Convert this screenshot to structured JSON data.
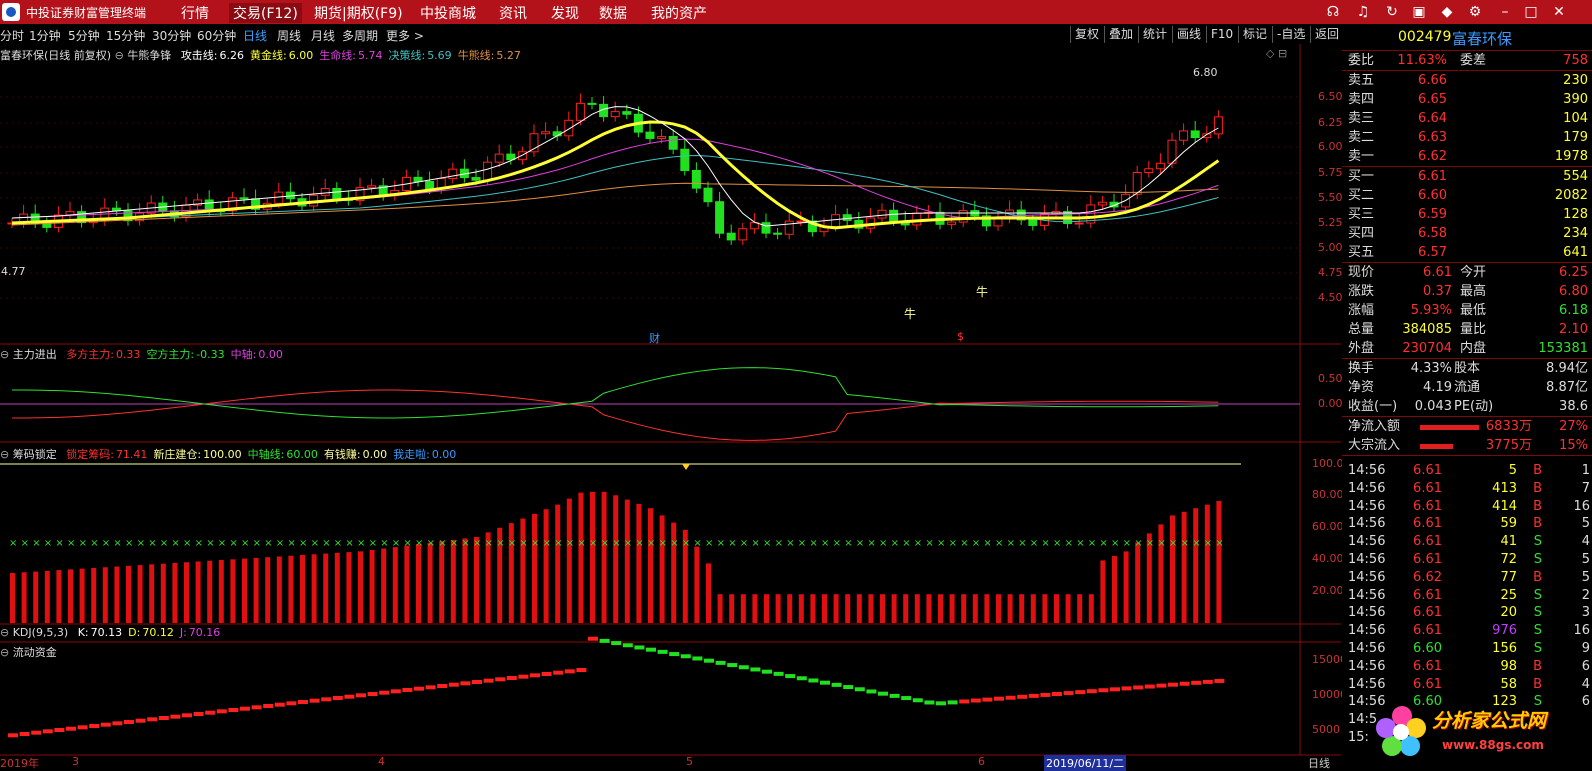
{
  "app": {
    "title": "中投证券财富管理终端"
  },
  "menu": [
    "行情",
    "交易(F12)",
    "期货|期权(F9)",
    "中投商城",
    "资讯",
    "发现",
    "数据",
    "我的资产"
  ],
  "periods": [
    "分时",
    "1分钟",
    "5分钟",
    "15分钟",
    "30分钟",
    "60分钟",
    "日线",
    "周线",
    "月线",
    "多周期",
    "更多 >"
  ],
  "toolbar_right": [
    "复权",
    "叠加",
    "统计",
    "画线",
    "F10",
    "标记",
    "-自选",
    "返回"
  ],
  "stock": {
    "code": "002479",
    "name": "富春环保"
  },
  "main_legend": {
    "title": "富春环保(日线 前复权)",
    "indicator": "牛熊争锋",
    "items": [
      {
        "label": "攻击线:",
        "value": "6.26",
        "color": "#ffffff"
      },
      {
        "label": "黄金线:",
        "value": "6.00",
        "color": "#ffff33"
      },
      {
        "label": "生命线:",
        "value": "5.74",
        "color": "#e040e0"
      },
      {
        "label": "决策线:",
        "value": "5.69",
        "color": "#40c0c0"
      },
      {
        "label": "牛熊线:",
        "value": "5.27",
        "color": "#e09040"
      }
    ]
  },
  "main_axis": [
    "6.50",
    "6.25",
    "6.00",
    "5.75",
    "5.50",
    "5.25",
    "5.00",
    "4.75",
    "4.50"
  ],
  "main_marks": {
    "high": "6.80",
    "low": "4.77",
    "bull1": "牛",
    "bull2": "牛",
    "cai": "财",
    "s_mark": "$"
  },
  "panel2": {
    "name": "主力进出",
    "items": [
      {
        "label": "多方主力:",
        "value": "0.33",
        "color": "#ff3030"
      },
      {
        "label": "空方主力:",
        "value": "-0.33",
        "color": "#30e030"
      },
      {
        "label": "中轴:",
        "value": "0.00",
        "color": "#e040e0"
      }
    ],
    "axis": [
      "0.50",
      "0.00"
    ]
  },
  "panel3": {
    "name": "筹码锁定",
    "items": [
      {
        "label": "锁定筹码:",
        "value": "71.41",
        "color": "#ff3030"
      },
      {
        "label": "新庄建仓:",
        "value": "100.00",
        "color": "#ffff99"
      },
      {
        "label": "中轴线:",
        "value": "60.00",
        "color": "#30e030"
      },
      {
        "label": "有钱赚:",
        "value": "0.00",
        "color": "#ffff99"
      },
      {
        "label": "我走啦:",
        "value": "0.00",
        "color": "#3a9aff"
      }
    ],
    "axis": [
      "100.0",
      "80.00",
      "60.00",
      "40.00",
      "20.00"
    ]
  },
  "panel4": {
    "name": "KDJ(9,5,3)",
    "items": [
      {
        "label": "K:",
        "value": "70.13",
        "color": "#ffffff"
      },
      {
        "label": "D:",
        "value": "70.12",
        "color": "#ffff33"
      },
      {
        "label": "J:",
        "value": "70.16",
        "color": "#e040e0"
      }
    ]
  },
  "panel5": {
    "name": "流动资金",
    "axis": [
      "15000",
      "10000",
      "5000"
    ]
  },
  "xaxis": [
    "2019年",
    "3",
    "4",
    "5",
    "6",
    "2019/06/11/二"
  ],
  "xaxis_right": "日线",
  "quote": {
    "weibi": {
      "label": "委比",
      "value": "11.63%",
      "label2": "委差",
      "value2": "758"
    },
    "asks": [
      {
        "label": "卖五",
        "price": "6.66",
        "vol": "230"
      },
      {
        "label": "卖四",
        "price": "6.65",
        "vol": "390"
      },
      {
        "label": "卖三",
        "price": "6.64",
        "vol": "104"
      },
      {
        "label": "卖二",
        "price": "6.63",
        "vol": "179"
      },
      {
        "label": "卖一",
        "price": "6.62",
        "vol": "1978"
      }
    ],
    "bids": [
      {
        "label": "买一",
        "price": "6.61",
        "vol": "554"
      },
      {
        "label": "买二",
        "price": "6.60",
        "vol": "2082"
      },
      {
        "label": "买三",
        "price": "6.59",
        "vol": "128"
      },
      {
        "label": "买四",
        "price": "6.58",
        "vol": "234"
      },
      {
        "label": "买五",
        "price": "6.57",
        "vol": "641"
      }
    ],
    "stats": [
      {
        "l1": "现价",
        "v1": "6.61",
        "c1": "#ff3030",
        "l2": "今开",
        "v2": "6.25",
        "c2": "#ff3030"
      },
      {
        "l1": "涨跌",
        "v1": "0.37",
        "c1": "#ff3030",
        "l2": "最高",
        "v2": "6.80",
        "c2": "#ff3030"
      },
      {
        "l1": "涨幅",
        "v1": "5.93%",
        "c1": "#ff3030",
        "l2": "最低",
        "v2": "6.18",
        "c2": "#30e030"
      },
      {
        "l1": "总量",
        "v1": "384085",
        "c1": "#ffff33",
        "l2": "量比",
        "v2": "2.10",
        "c2": "#ff3030"
      },
      {
        "l1": "外盘",
        "v1": "230704",
        "c1": "#ff3030",
        "l2": "内盘",
        "v2": "153381",
        "c2": "#30e030"
      }
    ],
    "stats2": [
      {
        "l1": "换手",
        "v1": "4.33%",
        "l2": "股本",
        "v2": "8.94亿"
      },
      {
        "l1": "净资",
        "v1": "4.19",
        "l2": "流通",
        "v2": "8.87亿"
      },
      {
        "l1": "收益(一)",
        "v1": "0.043",
        "l2": "PE(动)",
        "v2": "38.6"
      }
    ],
    "flows": [
      {
        "label": "净流入额",
        "value": "6833万",
        "pct": "27%",
        "bar": 0.27
      },
      {
        "label": "大宗流入",
        "value": "3775万",
        "pct": "15%",
        "bar": 0.15
      }
    ]
  },
  "ticks": [
    {
      "t": "14:56",
      "p": "6.61",
      "v": "5",
      "d": "B",
      "n": "1"
    },
    {
      "t": "14:56",
      "p": "6.61",
      "v": "413",
      "d": "B",
      "n": "7"
    },
    {
      "t": "14:56",
      "p": "6.61",
      "v": "414",
      "d": "B",
      "n": "16"
    },
    {
      "t": "14:56",
      "p": "6.61",
      "v": "59",
      "d": "B",
      "n": "5"
    },
    {
      "t": "14:56",
      "p": "6.61",
      "v": "41",
      "d": "S",
      "n": "4"
    },
    {
      "t": "14:56",
      "p": "6.61",
      "v": "72",
      "d": "S",
      "n": "5"
    },
    {
      "t": "14:56",
      "p": "6.62",
      "v": "77",
      "d": "B",
      "n": "5"
    },
    {
      "t": "14:56",
      "p": "6.61",
      "v": "25",
      "d": "S",
      "n": "2"
    },
    {
      "t": "14:56",
      "p": "6.61",
      "v": "20",
      "d": "S",
      "n": "3"
    },
    {
      "t": "14:56",
      "p": "6.61",
      "v": "976",
      "d": "S",
      "n": "16"
    },
    {
      "t": "14:56",
      "p": "6.60",
      "v": "156",
      "d": "S",
      "n": "9"
    },
    {
      "t": "14:56",
      "p": "6.61",
      "v": "98",
      "d": "B",
      "n": "6"
    },
    {
      "t": "14:56",
      "p": "6.61",
      "v": "58",
      "d": "B",
      "n": "4"
    },
    {
      "t": "14:56",
      "p": "6.60",
      "v": "123",
      "d": "S",
      "n": "6"
    },
    {
      "t": "14:5",
      "p": "",
      "v": "",
      "d": "",
      "n": ""
    },
    {
      "t": "15:",
      "p": "",
      "v": "",
      "d": "",
      "n": ""
    }
  ],
  "watermark": {
    "text": "分析家公式网",
    "url": "www.88gs.com"
  },
  "colors": {
    "up": "#ff2020",
    "down": "#20e020",
    "accent": "#b3121b",
    "bg": "#000000"
  }
}
